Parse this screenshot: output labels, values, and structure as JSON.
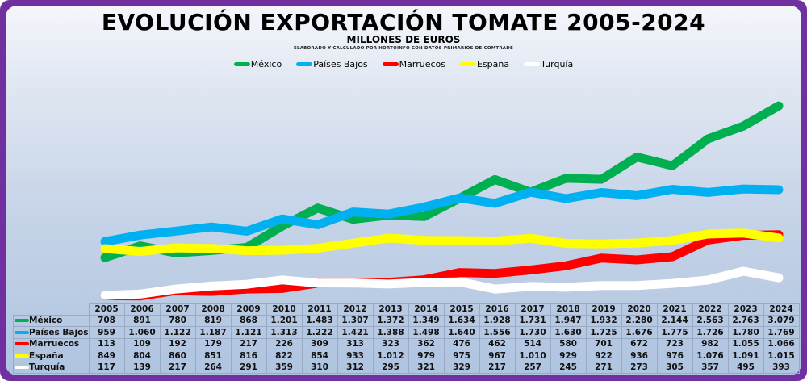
{
  "header": {
    "title": "EVOLUCIÓN EXPORTACIÓN TOMATE 2005-2024",
    "subtitle": "MILLONES DE EUROS",
    "source": "ELABORADO Y CALCULADO POR HORTOINFO CON DATOS PRIMARIOS DE COMTRADE"
  },
  "colors": {
    "frame": "#7030a0",
    "México": "#00b050",
    "Países Bajos": "#00b0f0",
    "Marruecos": "#ff0000",
    "España": "#ffff00",
    "Turquía": "#ffffff"
  },
  "chart_data": {
    "type": "line",
    "title": "EVOLUCIÓN EXPORTACIÓN TOMATE 2005-2024",
    "subtitle": "MILLONES DE EUROS",
    "xlabel": "",
    "ylabel": "Millones de euros",
    "grid": false,
    "legend_position": "top-center",
    "x": [
      "2005",
      "2006",
      "2007",
      "2008",
      "2009",
      "2010",
      "2011",
      "2012",
      "2013",
      "2014",
      "2015",
      "2016",
      "2017",
      "2018",
      "2019",
      "2020",
      "2021",
      "2022",
      "2023",
      "2024"
    ],
    "series": [
      {
        "name": "México",
        "color": "#00b050",
        "values": [
          708,
          891,
          780,
          819,
          868,
          1201,
          1483,
          1307,
          1372,
          1349,
          1634,
          1928,
          1731,
          1947,
          1932,
          2280,
          2144,
          2563,
          2763,
          3079
        ],
        "labels": [
          "708",
          "891",
          "780",
          "819",
          "868",
          "1.201",
          "1.483",
          "1.307",
          "1.372",
          "1.349",
          "1.634",
          "1.928",
          "1.731",
          "1.947",
          "1.932",
          "2.280",
          "2.144",
          "2.563",
          "2.763",
          "3.079"
        ]
      },
      {
        "name": "Países Bajos",
        "color": "#00b0f0",
        "values": [
          959,
          1060,
          1122,
          1187,
          1121,
          1313,
          1222,
          1421,
          1388,
          1498,
          1640,
          1556,
          1730,
          1630,
          1725,
          1676,
          1775,
          1726,
          1780,
          1769
        ],
        "labels": [
          "959",
          "1.060",
          "1.122",
          "1.187",
          "1.121",
          "1.313",
          "1.222",
          "1.421",
          "1.388",
          "1.498",
          "1.640",
          "1.556",
          "1.730",
          "1.630",
          "1.725",
          "1.676",
          "1.775",
          "1.726",
          "1.780",
          "1.769"
        ]
      },
      {
        "name": "Marruecos",
        "color": "#ff0000",
        "values": [
          113,
          109,
          192,
          179,
          217,
          226,
          309,
          313,
          323,
          362,
          476,
          462,
          514,
          580,
          701,
          672,
          723,
          982,
          1055,
          1066
        ],
        "labels": [
          "113",
          "109",
          "192",
          "179",
          "217",
          "226",
          "309",
          "313",
          "323",
          "362",
          "476",
          "462",
          "514",
          "580",
          "701",
          "672",
          "723",
          "982",
          "1.055",
          "1.066"
        ]
      },
      {
        "name": "España",
        "color": "#ffff00",
        "values": [
          849,
          804,
          860,
          851,
          816,
          822,
          854,
          933,
          1012,
          979,
          975,
          967,
          1010,
          929,
          922,
          936,
          976,
          1076,
          1091,
          1015
        ],
        "labels": [
          "849",
          "804",
          "860",
          "851",
          "816",
          "822",
          "854",
          "933",
          "1.012",
          "979",
          "975",
          "967",
          "1.010",
          "929",
          "922",
          "936",
          "976",
          "1.076",
          "1.091",
          "1.015"
        ]
      },
      {
        "name": "Turquía",
        "color": "#ffffff",
        "values": [
          117,
          139,
          217,
          264,
          291,
          359,
          310,
          312,
          295,
          321,
          329,
          217,
          257,
          245,
          271,
          273,
          305,
          357,
          495,
          393
        ],
        "labels": [
          "117",
          "139",
          "217",
          "264",
          "291",
          "359",
          "310",
          "312",
          "295",
          "321",
          "329",
          "217",
          "257",
          "245",
          "271",
          "273",
          "305",
          "357",
          "495",
          "393"
        ]
      }
    ],
    "ylim": [
      0,
      3300
    ]
  }
}
